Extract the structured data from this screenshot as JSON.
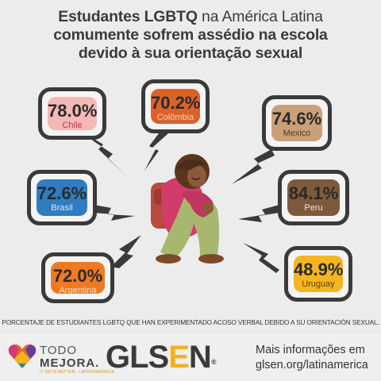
{
  "title": {
    "part1_bold": "Estudantes LGBTQ",
    "part1_light": " na América Latina",
    "line2": "comumente sofrem assédio na escola",
    "line3": "devido à sua orientação sexual"
  },
  "bubbles": [
    {
      "pct": "78.0%",
      "country": "Chile",
      "color": "#f4b8b5",
      "text_color": "#b0404a"
    },
    {
      "pct": "70.2%",
      "country": "Colômbia",
      "color": "#d9622b",
      "text_color": "#f5d0b8"
    },
    {
      "pct": "74.6%",
      "country": "Mexico",
      "color": "#c9a07a",
      "text_color": "#5a3b22"
    },
    {
      "pct": "72.6%",
      "country": "Brasil",
      "color": "#2f7dc0",
      "text_color": "#d8e8f5"
    },
    {
      "pct": "84.1%",
      "country": "Peru",
      "color": "#7d5a3c",
      "text_color": "#f0e2d0"
    },
    {
      "pct": "72.0%",
      "country": "Argentina",
      "color": "#ef7a22",
      "text_color": "#fbe0c8"
    },
    {
      "pct": "48.9%",
      "country": "Uruguay",
      "color": "#f5b521",
      "text_color": "#5a4010"
    }
  ],
  "footnote": "PORCENTAJE DE ESTUDIANTES LGBTQ QUE HAN EXPERIMENTADO ACOSO VERBAL DEBIDO A SU ORIENTACIÓN SEXUAL.",
  "footer": {
    "todo_logo": "TODO",
    "todo_logo2": "MEJORA.",
    "todo_tagline": "IT GETS BETTER · LATINOAMÉRICA",
    "glsen_g": "GLS",
    "glsen_e": "E",
    "glsen_n": "N",
    "glsen_reg": "®",
    "more_line1": "Mais informações em",
    "more_line2": "glsen.org/latinamerica"
  }
}
